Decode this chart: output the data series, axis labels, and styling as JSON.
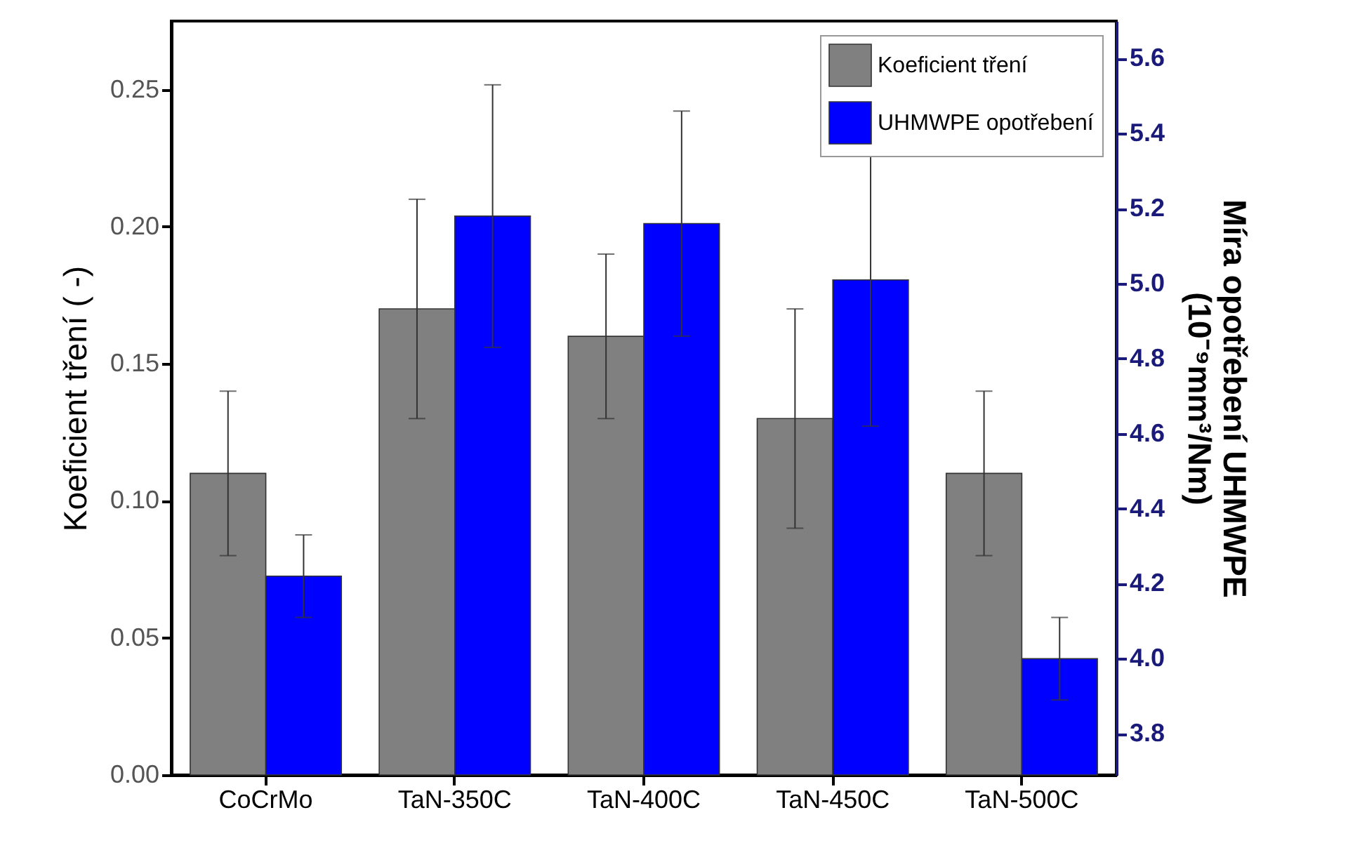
{
  "chart_data": {
    "type": "bar",
    "categories": [
      "CoCrMo",
      "TaN-350C",
      "TaN-400C",
      "TaN-450C",
      "TaN-500C"
    ],
    "series": [
      {
        "name": "Koeficient tření",
        "color": "#808080",
        "values": [
          0.11,
          0.17,
          0.16,
          0.13,
          0.11
        ],
        "errors": [
          0.03,
          0.04,
          0.03,
          0.04,
          0.03
        ]
      },
      {
        "name": "UHMWPE opotřebení",
        "color": "#0000ff",
        "axis": "y2",
        "values": [
          4.22,
          5.18,
          5.16,
          5.01,
          4.0
        ],
        "errors": [
          0.11,
          0.35,
          0.3,
          0.39,
          0.11
        ]
      }
    ],
    "ylabel": "Koeficient tření ( -)",
    "y2label": "Míra opotřebení UHMWPE\n(10⁻⁹mm³/Nm)",
    "ylim": [
      0,
      0.275
    ],
    "yticks": [
      {
        "value": 0,
        "label": "0.00"
      },
      0.05,
      {
        "value": 0.1,
        "label": "0.10"
      },
      0.15,
      {
        "value": 0.2,
        "label": "0.20"
      },
      0.25
    ],
    "y2lim": [
      3.69,
      5.7
    ],
    "y2ticks": [
      3.8,
      {
        "value": 4,
        "label": "4.0"
      },
      4.2,
      4.4,
      4.6,
      4.8,
      {
        "value": 5,
        "label": "5.0"
      },
      5.2,
      5.4,
      5.6
    ],
    "legend": "top right"
  }
}
